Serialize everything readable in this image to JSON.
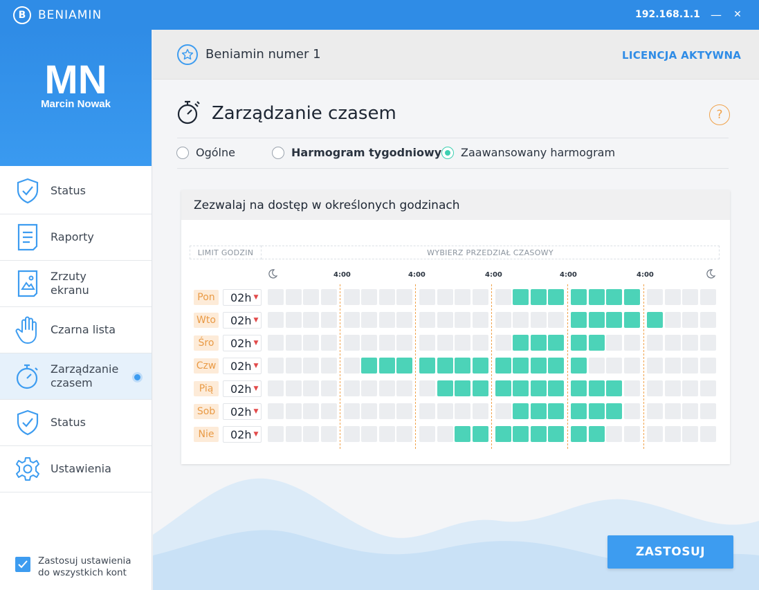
{
  "window": {
    "brand_letter": "B",
    "brand_name": "BENIAMIN",
    "ip": "192.168.1.1",
    "minimize": "—",
    "close": "✕"
  },
  "user": {
    "initials": "MN",
    "name": "Marcin Nowak"
  },
  "sidebar": {
    "items": [
      {
        "label": "Status",
        "icon": "shield-check-icon",
        "active": false
      },
      {
        "label": "Raporty",
        "icon": "document-icon",
        "active": false
      },
      {
        "label": "Zrzuty ekranu",
        "icon": "screenshot-image-icon",
        "active": false
      },
      {
        "label": "Czarna lista",
        "icon": "hand-stop-icon",
        "active": false
      },
      {
        "label": "Zarządzanie czasem",
        "icon": "stopwatch-icon",
        "active": true
      },
      {
        "label": "Status",
        "icon": "shield-check-icon",
        "active": false
      },
      {
        "label": "Ustawienia",
        "icon": "gear-icon",
        "active": false
      }
    ],
    "apply_all_label": "Zastosuj ustawienia do wszystkich kont",
    "apply_all_checked": true
  },
  "header": {
    "profile_name": "Beniamin numer 1",
    "license": "LICENCJA AKTYWNA"
  },
  "page": {
    "title": "Zarządzanie czasem",
    "help": "?"
  },
  "modes": [
    {
      "label": "Ogólne",
      "selected": false,
      "bold": false
    },
    {
      "label": "Harmogram tygodniowy",
      "selected": false,
      "bold": true
    },
    {
      "label": "Zaawansowany harmogram",
      "selected": true,
      "bold": false
    }
  ],
  "schedule": {
    "title": "Zezwalaj na dostęp w określonych godzinach",
    "limit_header": "LIMIT GODZIN",
    "range_header": "WYBIERZ PRZEDZIAŁ CZASOWY",
    "ticks": [
      "4:00",
      "4:00",
      "4:00",
      "4:00",
      "4:00"
    ],
    "rows": [
      {
        "day": "Pon",
        "limit": "02h",
        "on": [
          13,
          14,
          15,
          16,
          17,
          18,
          19
        ]
      },
      {
        "day": "Wto",
        "limit": "02h",
        "on": [
          16,
          17,
          18,
          19,
          20
        ]
      },
      {
        "day": "Śro",
        "limit": "02h",
        "on": [
          13,
          14,
          15,
          16,
          17
        ]
      },
      {
        "day": "Czw",
        "limit": "02h",
        "on": [
          5,
          6,
          7,
          8,
          9,
          10,
          11,
          12,
          13,
          14,
          15,
          16
        ]
      },
      {
        "day": "Pią",
        "limit": "02h",
        "on": [
          9,
          10,
          11,
          12,
          13,
          14,
          15,
          16,
          17,
          18
        ]
      },
      {
        "day": "Sob",
        "limit": "02h",
        "on": [
          13,
          14,
          15,
          16,
          17,
          18
        ]
      },
      {
        "day": "Nie",
        "limit": "02h",
        "on": [
          10,
          11,
          12,
          13,
          14,
          15,
          16,
          17
        ]
      }
    ]
  },
  "actions": {
    "apply": "ZASTOSUJ"
  },
  "colors": {
    "accent": "#2f8ce6",
    "active_cell": "#4cd3b8",
    "day_tag": "#e99a45",
    "help": "#f0a24b"
  }
}
